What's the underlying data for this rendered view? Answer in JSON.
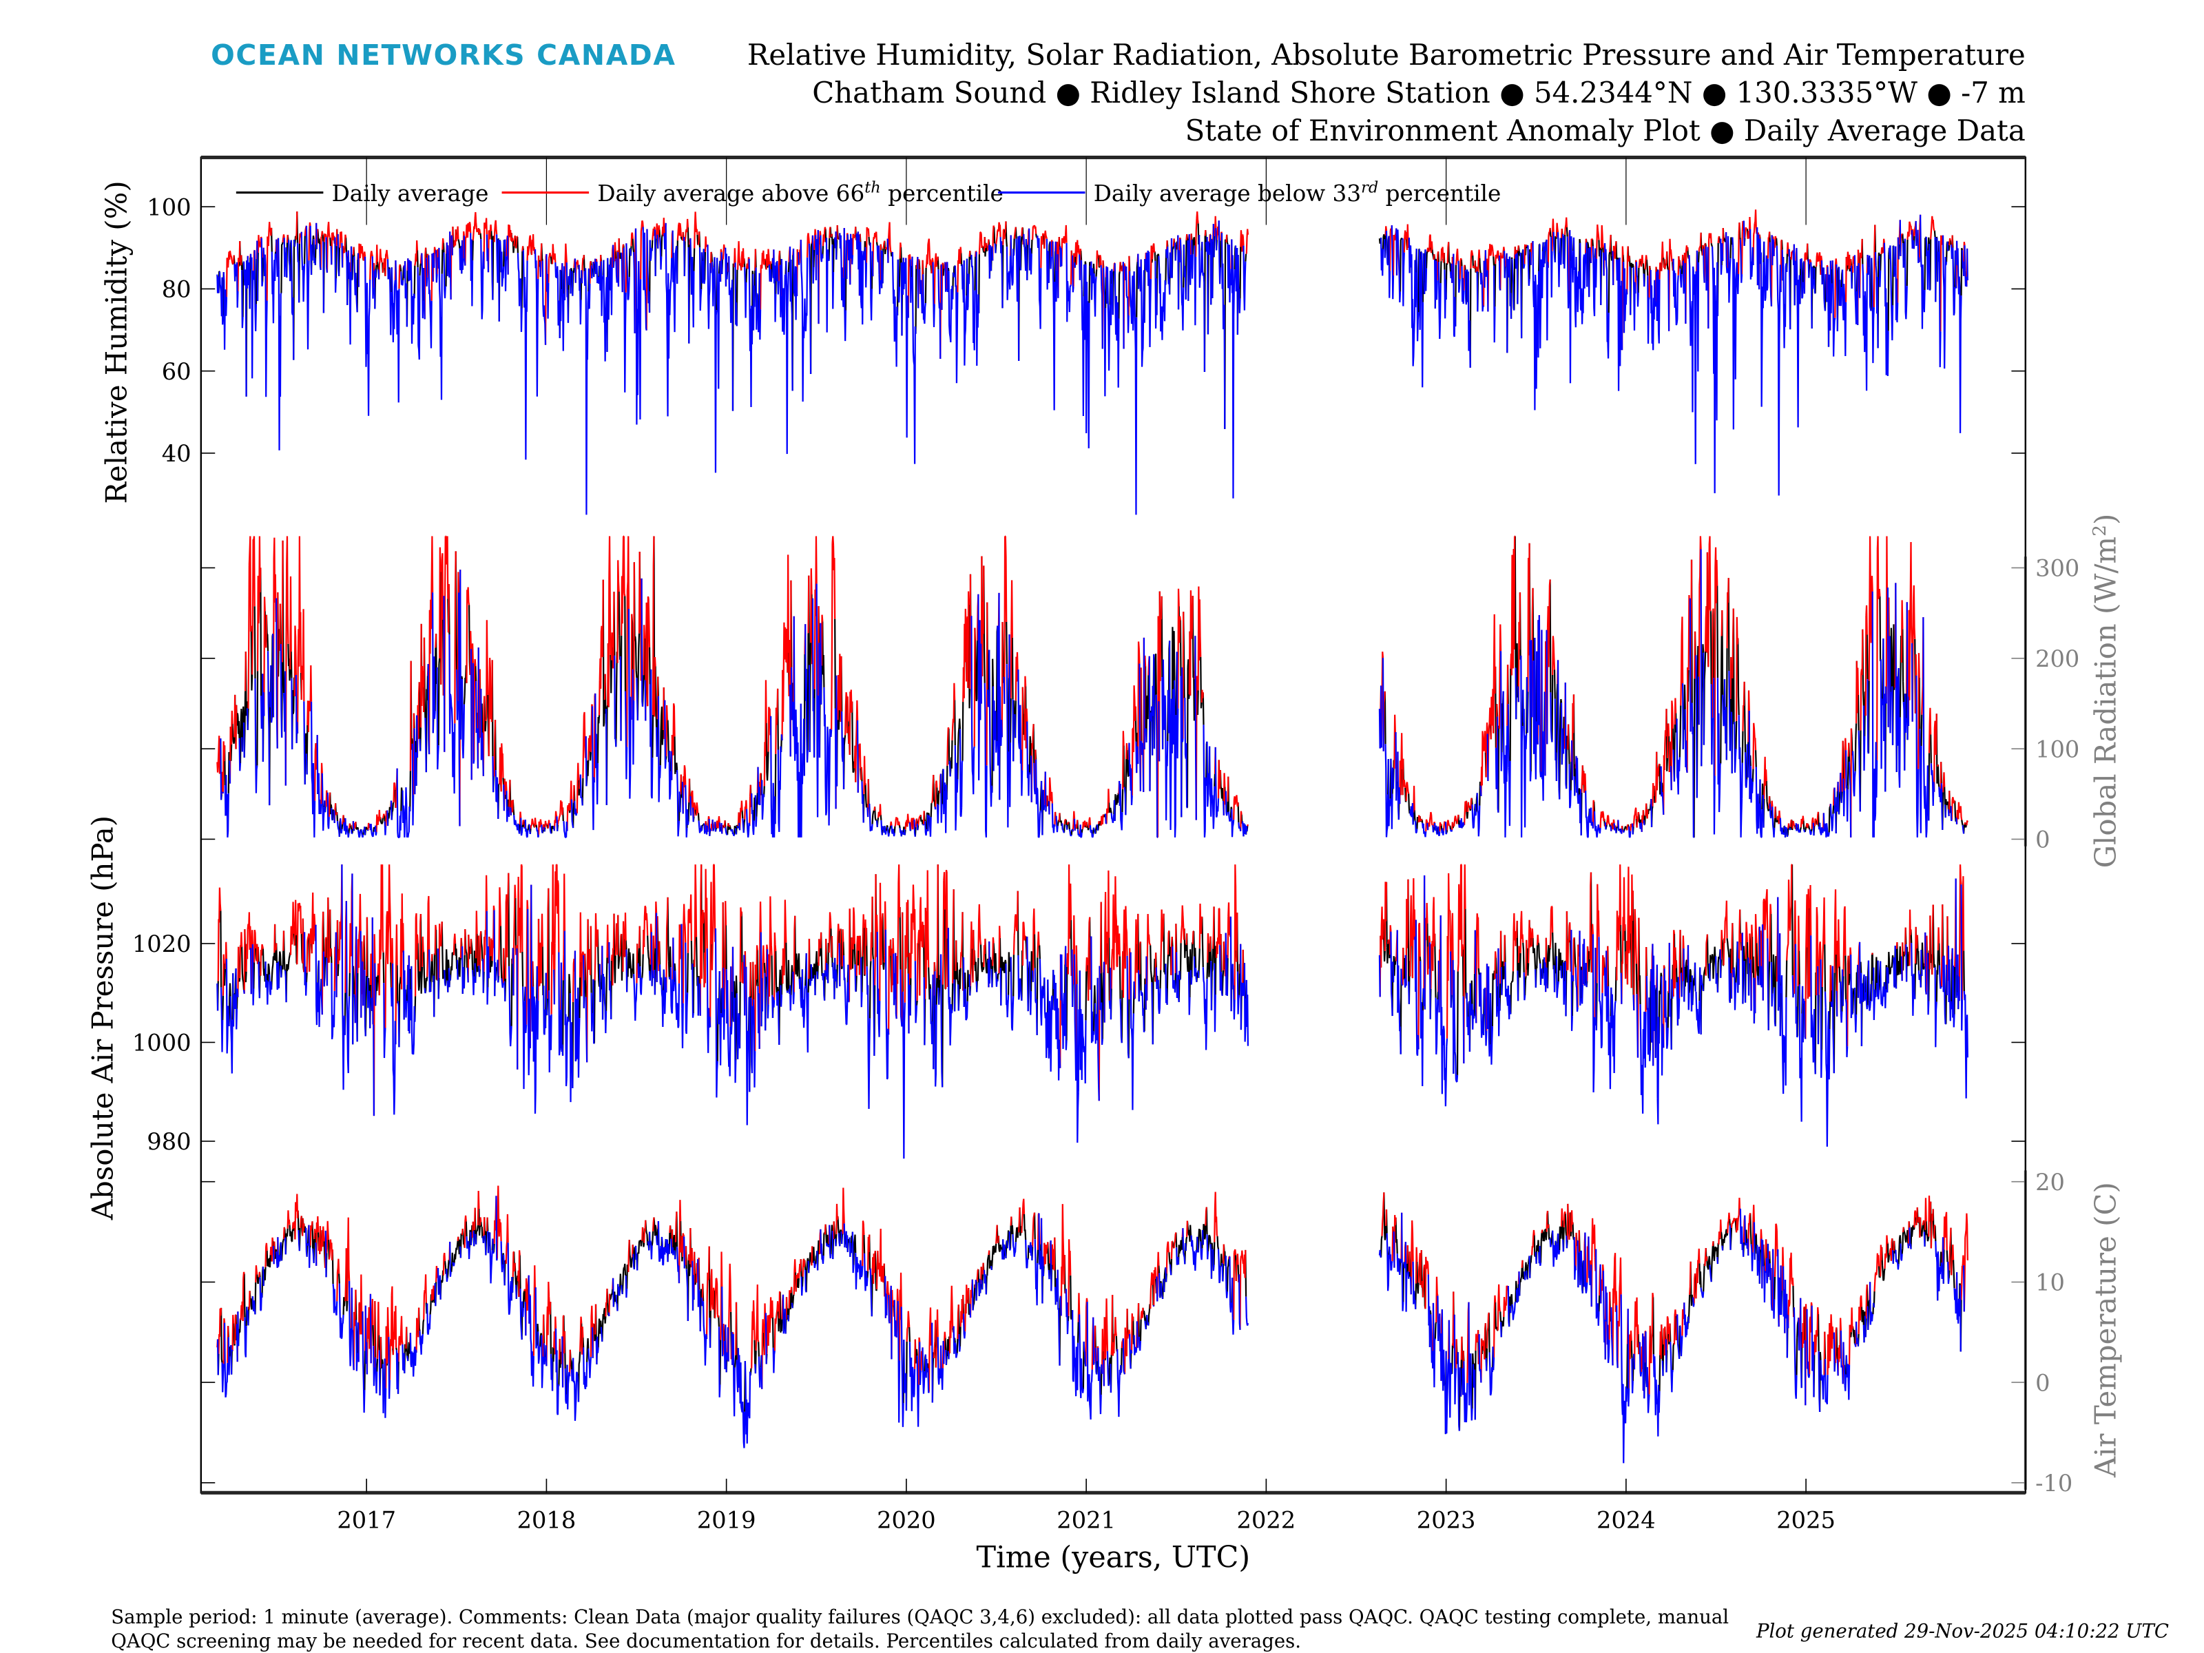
{
  "header": {
    "logo": "OCEAN NETWORKS CANADA",
    "title_lines": [
      "Relative Humidity, Solar Radiation, Absolute Barometric Pressure and Air Temperature",
      "Chatham Sound ● Ridley Island Shore Station ● 54.2344°N ● 130.3335°W ● -7 m",
      "State of Environment Anomaly Plot ● Daily Average Data"
    ]
  },
  "footer": {
    "comment_lines": [
      "Sample period: 1 minute (average). Comments: Clean Data (major quality failures (QAQC 3,4,6) excluded): all data plotted pass QAQC. QAQC testing complete, manual",
      "QAQC screening may be needed for recent data. See documentation for details. Percentiles calculated from daily averages."
    ],
    "generated": "Plot generated 29-Nov-2025 04:10:22 UTC"
  },
  "colors": {
    "logo": "#1a9cc4",
    "average": "#000000",
    "above": "#ff0000",
    "below": "#0000ff",
    "right_axis": "#808080"
  },
  "chart_data": {
    "type": "line",
    "xlabel": "Time (years, UTC)",
    "xlim": [
      2016.08,
      2026.22
    ],
    "xticks": [
      2017,
      2018,
      2019,
      2020,
      2021,
      2022,
      2023,
      2024,
      2025
    ],
    "xtick_labels": [
      "2017",
      "2018",
      "2019",
      "2020",
      "2021",
      "2022",
      "2023",
      "2024",
      "2025"
    ],
    "data_segments": [
      [
        2016.17,
        2021.9
      ],
      [
        2022.63,
        2025.9
      ]
    ],
    "legend": {
      "placement": "top-left",
      "entries": [
        {
          "label": "Daily average",
          "color": "#000000"
        },
        {
          "label": "Daily average above 66",
          "sup": "th",
          "suffix": " percentile",
          "color": "#ff0000"
        },
        {
          "label": "Daily average below 33",
          "sup": "rd",
          "suffix": " percentile",
          "color": "#0000ff"
        }
      ]
    },
    "panels": [
      {
        "id": "rh",
        "ylabel": "Relative Humidity (%)",
        "axis_side": "left",
        "ylim": [
          22,
          112
        ],
        "yticks": [
          40,
          60,
          80,
          100
        ],
        "ytick_labels": [
          "40",
          "60",
          "80",
          "100"
        ],
        "model": {
          "base": 88,
          "seasonal_amp": 4,
          "peak_phase": 0.65,
          "noise": 9,
          "skew": "down",
          "max": 100,
          "min": 25
        }
      },
      {
        "id": "solar",
        "ylabel": "Global Radiation (W/m",
        "ylabel_sup": "2",
        "ylabel_end": ")",
        "axis_side": "right",
        "ylim": [
          -17,
          345
        ],
        "yticks": [
          0,
          100,
          200,
          300
        ],
        "ytick_labels": [
          "0",
          "100",
          "200",
          "300"
        ],
        "model": {
          "base": 12,
          "seasonal_amp": 190,
          "peak_phase": 0.47,
          "noise": 0.45,
          "skew": "mult",
          "max": 335,
          "min": 2
        }
      },
      {
        "id": "pressure",
        "ylabel": "Absolute Air Pressure (hPa)",
        "axis_side": "left",
        "ylim": [
          972,
          1038
        ],
        "yticks": [
          980,
          1000,
          1020
        ],
        "ytick_labels": [
          "980",
          "1000",
          "1020"
        ],
        "model": {
          "base": 1014,
          "seasonal_amp": 3,
          "peak_phase": 0.6,
          "noise": 8,
          "skew": "none",
          "max": 1036,
          "min": 976
        }
      },
      {
        "id": "temp",
        "ylabel": "Air Temperature (C)",
        "axis_side": "right",
        "ylim": [
          -11,
          21.5
        ],
        "yticks": [
          -10,
          0,
          10,
          20
        ],
        "ytick_labels": [
          "-10",
          "0",
          "10",
          "20"
        ],
        "model": {
          "base": 8.5,
          "seasonal_amp": 6.5,
          "peak_phase": 0.62,
          "noise": 2.2,
          "skew": "none",
          "max": 20,
          "min": -10
        }
      }
    ]
  }
}
